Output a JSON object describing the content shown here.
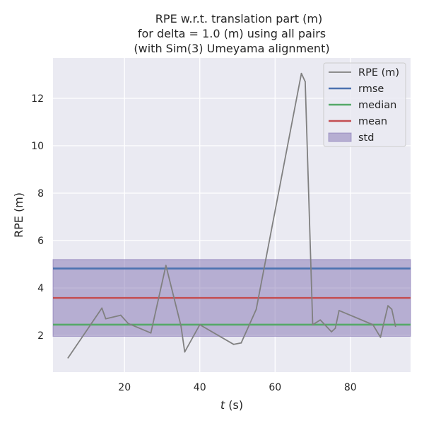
{
  "chart_data": {
    "type": "line",
    "title_lines": [
      "RPE w.r.t. translation part (m)",
      "for delta = 1.0 (m) using all pairs",
      "(with Sim(3) Umeyama alignment)"
    ],
    "xlabel_italic": "t",
    "xlabel_rest": " (s)",
    "ylabel": "RPE (m)",
    "xlim": [
      1,
      96
    ],
    "ylim": [
      0.45,
      13.7
    ],
    "x_ticks": [
      20,
      40,
      60,
      80
    ],
    "x_tick_labels": [
      "20",
      "40",
      "60",
      "80"
    ],
    "y_ticks": [
      2,
      4,
      6,
      8,
      10,
      12
    ],
    "y_tick_labels": [
      "2",
      "4",
      "6",
      "8",
      "10",
      "12"
    ],
    "grid": true,
    "legend_position": "top-right",
    "series": [
      {
        "name": "RPE (m)",
        "color": "#808080",
        "x": [
          5,
          14,
          15,
          19,
          21,
          27,
          31,
          35,
          36,
          40,
          49,
          51,
          55,
          67,
          68,
          70,
          72,
          75,
          76,
          77,
          86,
          88,
          90,
          91,
          92
        ],
        "y": [
          1.05,
          3.15,
          2.7,
          2.85,
          2.5,
          2.1,
          4.95,
          2.4,
          1.3,
          2.45,
          1.62,
          1.68,
          3.1,
          13.05,
          12.7,
          2.45,
          2.65,
          2.15,
          2.3,
          3.05,
          2.45,
          1.92,
          3.25,
          3.1,
          2.38
        ]
      }
    ],
    "statistics": [
      {
        "name": "rmse",
        "value": 4.82,
        "color": "#4c72b0"
      },
      {
        "name": "median",
        "value": 2.45,
        "color": "#55a868"
      },
      {
        "name": "mean",
        "value": 3.58,
        "color": "#c44e52"
      }
    ],
    "std_band": {
      "name": "std",
      "lower": 1.96,
      "upper": 5.2,
      "color": "#8172b2"
    }
  }
}
